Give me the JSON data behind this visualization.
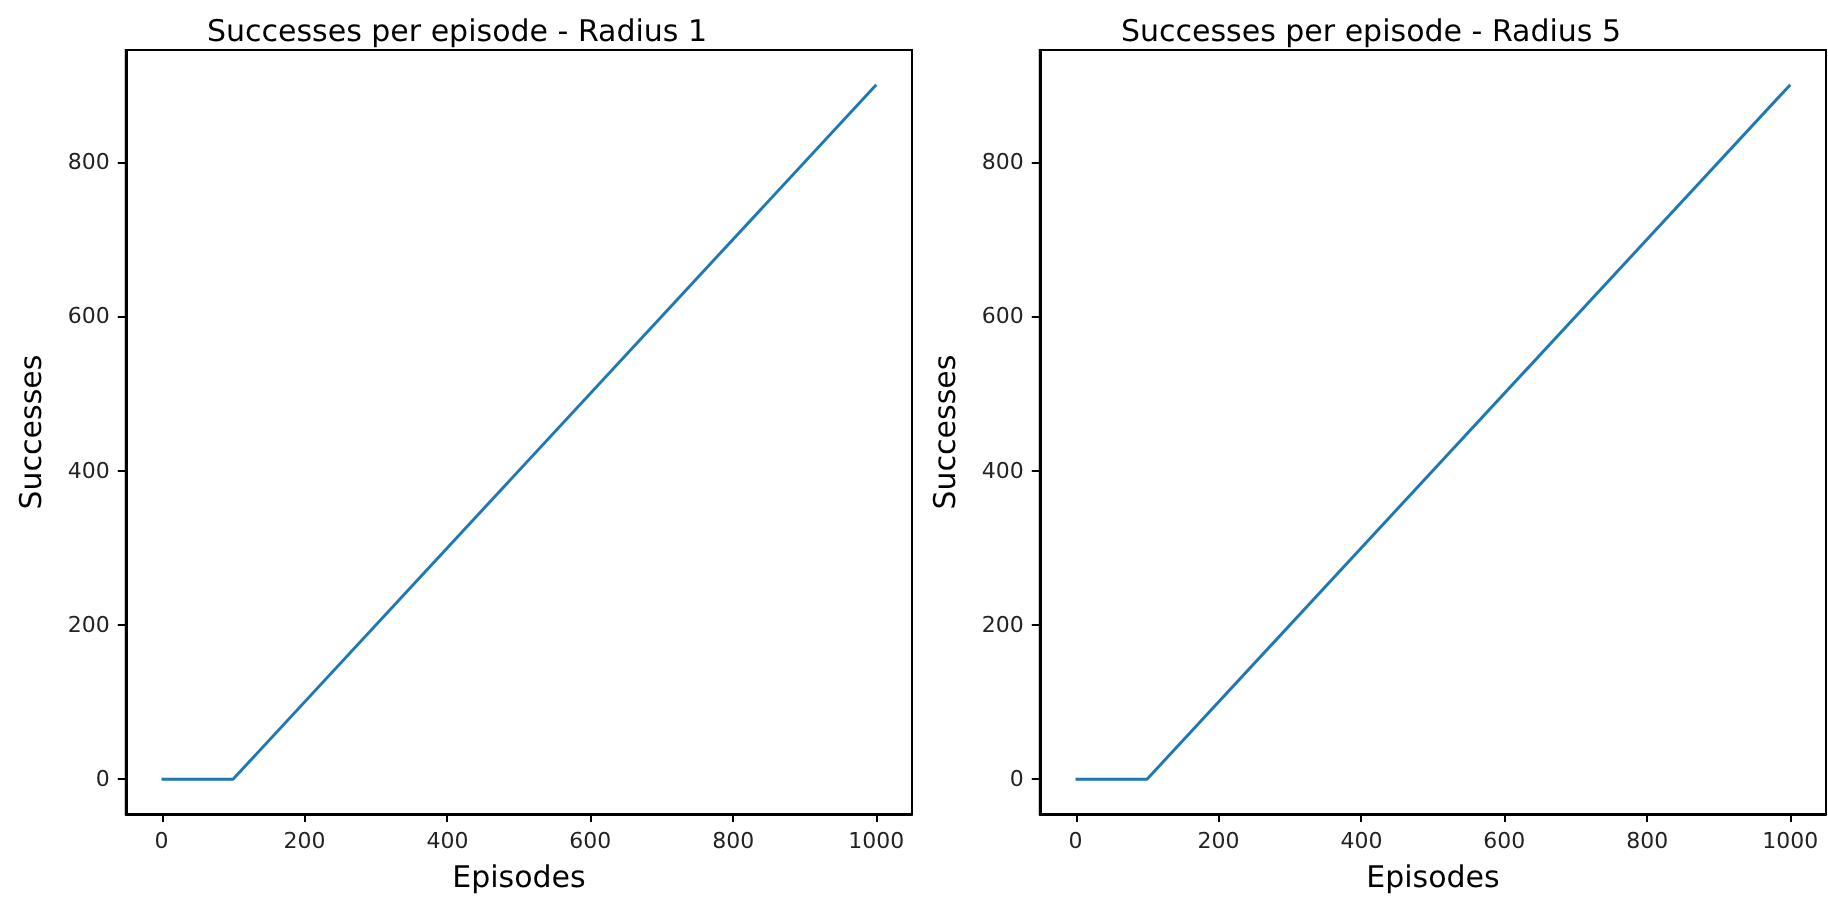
{
  "chart_data": [
    {
      "type": "line",
      "title": "Successes per episode - Radius 1",
      "xlabel": "Episodes",
      "ylabel": "Successes",
      "x": [
        0,
        100,
        1000
      ],
      "series": [
        {
          "color": "#1f77b4",
          "values": [
            0,
            0,
            900
          ]
        }
      ],
      "xlim": [
        -50,
        1050
      ],
      "xticks": [
        0,
        200,
        400,
        600,
        800,
        1000
      ],
      "ylim": [
        -45,
        945
      ],
      "yticks": [
        0,
        200,
        400,
        600,
        800
      ],
      "marker": "none",
      "line_style": "solid"
    },
    {
      "type": "line",
      "title": "Successes per episode - Radius 5",
      "xlabel": "Episodes",
      "ylabel": "Successes",
      "x": [
        0,
        100,
        1000
      ],
      "series": [
        {
          "color": "#1f77b4",
          "values": [
            0,
            0,
            900
          ]
        }
      ],
      "xlim": [
        -50,
        1050
      ],
      "xticks": [
        0,
        200,
        400,
        600,
        800,
        1000
      ],
      "ylim": [
        -45,
        945
      ],
      "yticks": [
        0,
        200,
        400,
        600,
        800
      ],
      "marker": "none",
      "line_style": "solid"
    }
  ]
}
